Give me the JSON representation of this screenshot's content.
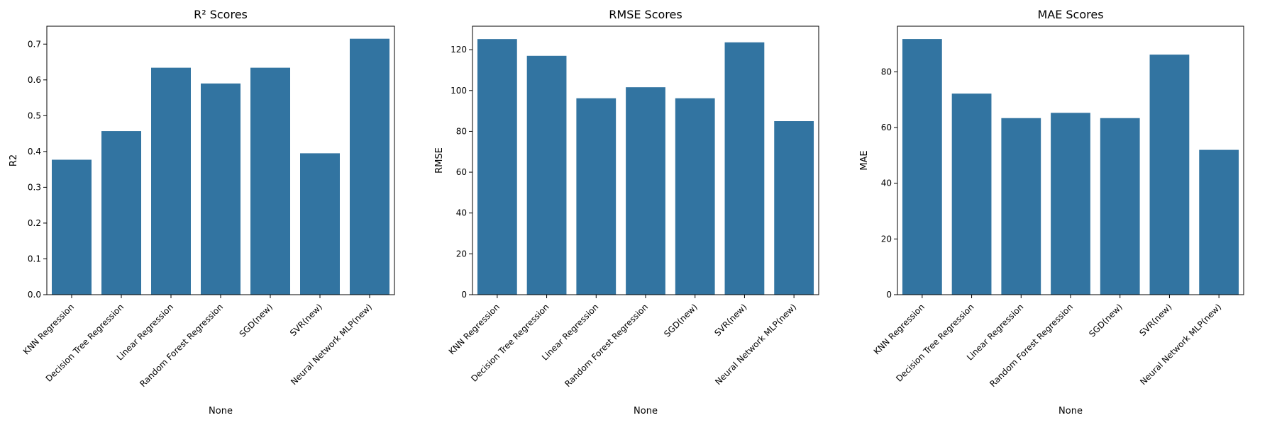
{
  "chart_data": [
    {
      "type": "bar",
      "title": "R² Scores",
      "xlabel": "None",
      "ylabel": "R2",
      "categories": [
        "KNN Regression",
        "Decision Tree Regression",
        "Linear Regression",
        "Random Forest Regression",
        "SGD(new)",
        "SVR(new)",
        "Neural Network MLP(new)"
      ],
      "values": [
        0.377,
        0.457,
        0.634,
        0.59,
        0.634,
        0.395,
        0.715
      ],
      "ylim": [
        0,
        0.75
      ],
      "yticks": [
        "0.0",
        "0.1",
        "0.2",
        "0.3",
        "0.4",
        "0.5",
        "0.6",
        "0.7"
      ],
      "bar_color": "#3274a1",
      "grid": false
    },
    {
      "type": "bar",
      "title": "RMSE Scores",
      "xlabel": "None",
      "ylabel": "RMSE",
      "categories": [
        "KNN Regression",
        "Decision Tree Regression",
        "Linear Regression",
        "Random Forest Regression",
        "SGD(new)",
        "SVR(new)",
        "Neural Network MLP(new)"
      ],
      "values": [
        125.2,
        117,
        96.2,
        101.6,
        96.2,
        123.6,
        85
      ],
      "ylim": [
        0,
        131.5
      ],
      "yticks": [
        "0",
        "20",
        "40",
        "60",
        "80",
        "100",
        "120"
      ],
      "bar_color": "#3274a1",
      "grid": false
    },
    {
      "type": "bar",
      "title": "MAE Scores",
      "xlabel": "None",
      "ylabel": "MAE",
      "categories": [
        "KNN Regression",
        "Decision Tree Regression",
        "Linear Regression",
        "Random Forest Regression",
        "SGD(new)",
        "SVR(new)",
        "Neural Network MLP(new)"
      ],
      "values": [
        91.8,
        72.2,
        63.4,
        65.3,
        63.4,
        86.2,
        52
      ],
      "ylim": [
        0,
        96.4
      ],
      "yticks": [
        "0",
        "20",
        "40",
        "60",
        "80"
      ],
      "bar_color": "#3274a1",
      "grid": false
    }
  ]
}
